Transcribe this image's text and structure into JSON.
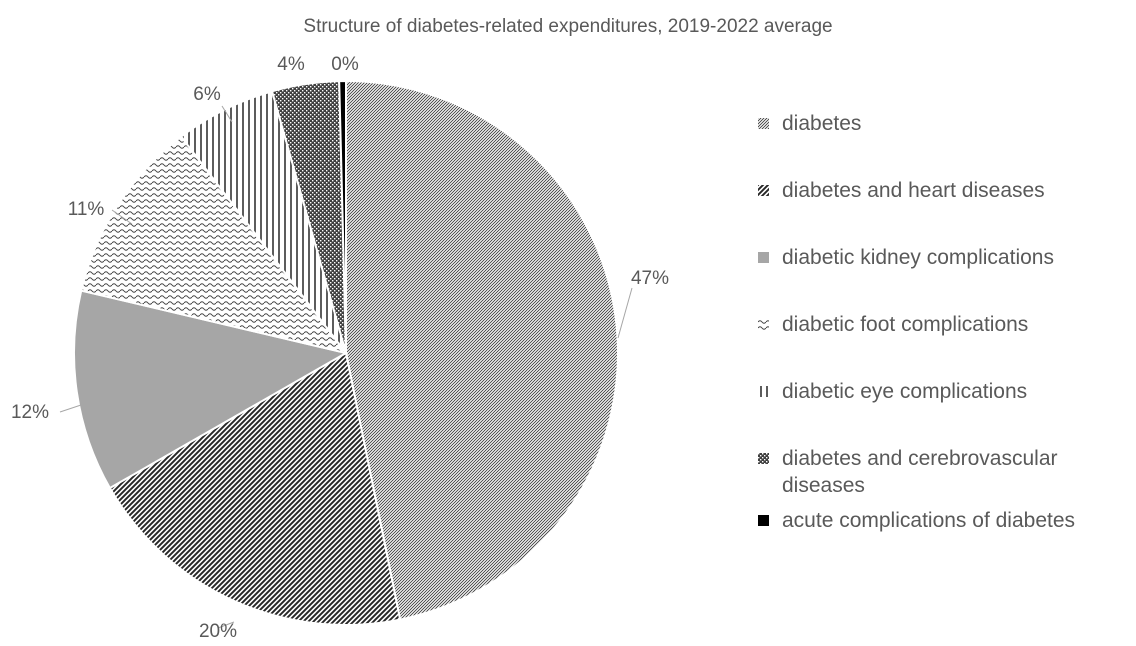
{
  "chart_data": {
    "type": "pie",
    "title": "Structure of diabetes-related expenditures, 2019-2022 average",
    "legend_position": "right",
    "slices": [
      {
        "label": "diabetes",
        "value": 47,
        "display": "47%",
        "pattern": "fine-diagonal"
      },
      {
        "label": "diabetes and heart diseases",
        "value": 20,
        "display": "20%",
        "pattern": "wide-diagonal"
      },
      {
        "label": "diabetic kidney complications",
        "value": 12,
        "display": "12%",
        "pattern": "solid-gray"
      },
      {
        "label": "diabetic foot complications",
        "value": 11,
        "display": "11%",
        "pattern": "wave"
      },
      {
        "label": "diabetic eye complications",
        "value": 6,
        "display": "6%",
        "pattern": "vertical-lines"
      },
      {
        "label": "diabetes and cerebrovascular diseases",
        "value": 4,
        "display": "4%",
        "pattern": "dense-checker"
      },
      {
        "label": "acute complications of diabetes",
        "value": 0.4,
        "display": "0%",
        "pattern": "solid-black"
      }
    ]
  },
  "legend": {
    "items": [
      {
        "lines": [
          "diabetes"
        ]
      },
      {
        "lines": [
          "diabetes and heart diseases"
        ]
      },
      {
        "lines": [
          "diabetic kidney complications"
        ]
      },
      {
        "lines": [
          "diabetic foot complications"
        ]
      },
      {
        "lines": [
          "diabetic eye complications"
        ]
      },
      {
        "lines": [
          "diabetes and cerebrovascular",
          "diseases"
        ]
      },
      {
        "lines": [
          "acute complications of diabetes"
        ]
      }
    ]
  },
  "colors": {
    "text": "#595959",
    "ink": "#404040",
    "kidney_fill": "#a6a6a6",
    "acute_fill": "#000000",
    "background": "#ffffff"
  }
}
